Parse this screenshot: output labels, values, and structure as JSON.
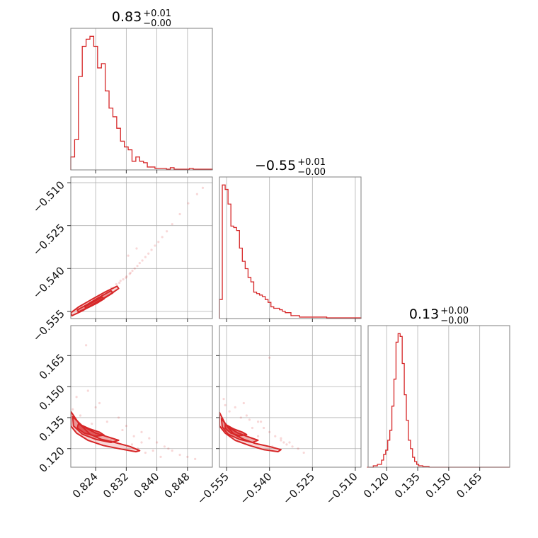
{
  "chart_data": {
    "type": "corner",
    "color": "#d62728",
    "parameters": [
      {
        "title_value": "0.83",
        "title_plus": "+0.01",
        "title_minus": "−0.00",
        "range": [
          0.8175,
          0.8545
        ],
        "ticks": [
          0.824,
          0.832,
          0.84,
          0.848
        ],
        "tick_labels": [
          "0.824",
          "0.832",
          "0.840",
          "0.848"
        ]
      },
      {
        "title_value": "−0.55",
        "title_plus": "+0.01",
        "title_minus": "−0.00",
        "range": [
          -0.5575,
          -0.508
        ],
        "ticks": [
          -0.555,
          -0.54,
          -0.525,
          -0.51
        ],
        "tick_labels": [
          "−0.555",
          "−0.540",
          "−0.525",
          "−0.510"
        ]
      },
      {
        "title_value": "0.13",
        "title_plus": "+0.00",
        "title_minus": "−0.00",
        "range": [
          0.111,
          0.1795
        ],
        "ticks": [
          0.12,
          0.135,
          0.15,
          0.165
        ],
        "tick_labels": [
          "0.120",
          "0.135",
          "0.150",
          "0.165"
        ]
      }
    ],
    "histograms": [
      {
        "edges": [
          0.8175,
          0.8185,
          0.8195,
          0.8205,
          0.8215,
          0.8225,
          0.8235,
          0.8245,
          0.8255,
          0.8265,
          0.8275,
          0.8285,
          0.8295,
          0.8305,
          0.8315,
          0.8325,
          0.8335,
          0.8345,
          0.8355,
          0.8365,
          0.8375,
          0.8385,
          0.8395,
          0.8405,
          0.8415,
          0.8425,
          0.8435,
          0.8445,
          0.8455,
          0.8465,
          0.8475,
          0.8485,
          0.8495,
          0.8505,
          0.8515,
          0.8525,
          0.8545
        ],
        "counts": [
          9,
          21,
          65,
          86,
          91,
          93,
          86,
          71,
          74,
          55,
          43,
          37,
          29,
          20,
          16,
          14,
          6,
          9,
          6,
          5,
          2,
          2,
          1,
          1,
          1,
          0.5,
          1.5,
          0.5,
          0.5,
          0.5,
          0.5,
          1,
          0.5,
          0.5,
          0.5,
          0.5
        ]
      },
      {
        "edges": [
          -0.5575,
          -0.5565,
          -0.5555,
          -0.5545,
          -0.5535,
          -0.5525,
          -0.5515,
          -0.5505,
          -0.5495,
          -0.5485,
          -0.5475,
          -0.5465,
          -0.5455,
          -0.5445,
          -0.5435,
          -0.5425,
          -0.5415,
          -0.5405,
          -0.5395,
          -0.5385,
          -0.5375,
          -0.5365,
          -0.5355,
          -0.5345,
          -0.5335,
          -0.5325,
          -0.5315,
          -0.5305,
          -0.5295,
          -0.528,
          -0.526,
          -0.524,
          -0.522,
          -0.52,
          -0.518,
          -0.516,
          -0.514,
          -0.512,
          -0.508
        ],
        "counts": [
          13,
          91,
          88,
          78,
          63,
          62,
          60,
          48,
          39,
          34,
          28,
          25,
          18,
          17,
          16,
          15,
          13,
          11,
          8,
          7,
          7,
          6,
          5,
          4,
          4,
          2,
          2,
          2,
          1,
          1,
          1,
          1,
          1,
          0.5,
          0.5,
          0.5,
          0.5,
          0.5
        ]
      },
      {
        "edges": [
          0.1105,
          0.1135,
          0.1155,
          0.1175,
          0.1185,
          0.1195,
          0.1205,
          0.1215,
          0.1225,
          0.1235,
          0.1245,
          0.1255,
          0.1265,
          0.1275,
          0.1285,
          0.1295,
          0.1305,
          0.1315,
          0.1325,
          0.1335,
          0.1345,
          0.1355,
          0.1375,
          0.1405,
          0.1795
        ],
        "counts": [
          0,
          1,
          2,
          5,
          9,
          12,
          19,
          26,
          43,
          62,
          88,
          94,
          92,
          73,
          51,
          33,
          19,
          13,
          7,
          4,
          2,
          1,
          0.5,
          0
        ]
      }
    ],
    "contours_2d": [
      {
        "pair": [
          0,
          1
        ],
        "levels": [
          [
            [
              0.8178,
              -0.5565
            ],
            [
              0.8205,
              -0.5548
            ],
            [
              0.824,
              -0.552
            ],
            [
              0.8275,
              -0.5493
            ],
            [
              0.83,
              -0.547
            ],
            [
              0.8296,
              -0.5462
            ],
            [
              0.8265,
              -0.5482
            ],
            [
              0.823,
              -0.5508
            ],
            [
              0.8195,
              -0.5535
            ],
            [
              0.8175,
              -0.5555
            ]
          ],
          [
            [
              0.8195,
              -0.5552
            ],
            [
              0.823,
              -0.553
            ],
            [
              0.8265,
              -0.5502
            ],
            [
              0.8285,
              -0.5485
            ],
            [
              0.828,
              -0.5478
            ],
            [
              0.825,
              -0.55
            ],
            [
              0.8215,
              -0.5528
            ],
            [
              0.8192,
              -0.5545
            ]
          ],
          [
            [
              0.8215,
              -0.554
            ],
            [
              0.8245,
              -0.552
            ],
            [
              0.8262,
              -0.5506
            ],
            [
              0.8257,
              -0.55
            ],
            [
              0.8235,
              -0.5516
            ],
            [
              0.8212,
              -0.5534
            ]
          ]
        ],
        "samples": [
          [
            0.8236,
            -0.5508
          ],
          [
            0.8244,
            -0.5505
          ],
          [
            0.8256,
            -0.5492
          ],
          [
            0.8268,
            -0.5483
          ],
          [
            0.8281,
            -0.5468
          ],
          [
            0.8294,
            -0.5455
          ],
          [
            0.8305,
            -0.5443
          ],
          [
            0.8312,
            -0.5438
          ],
          [
            0.8321,
            -0.5428
          ],
          [
            0.8329,
            -0.5419
          ],
          [
            0.8336,
            -0.5408
          ],
          [
            0.8342,
            -0.54
          ],
          [
            0.8349,
            -0.5391
          ],
          [
            0.8355,
            -0.5381
          ],
          [
            0.8362,
            -0.5372
          ],
          [
            0.837,
            -0.536
          ],
          [
            0.8378,
            -0.5348
          ],
          [
            0.8386,
            -0.5335
          ],
          [
            0.8395,
            -0.532
          ],
          [
            0.8404,
            -0.5307
          ],
          [
            0.8414,
            -0.529
          ],
          [
            0.8426,
            -0.527
          ],
          [
            0.844,
            -0.5245
          ],
          [
            0.846,
            -0.521
          ],
          [
            0.8482,
            -0.5172
          ],
          [
            0.8505,
            -0.514
          ],
          [
            0.852,
            -0.5118
          ],
          [
            0.8325,
            -0.5355
          ],
          [
            0.8347,
            -0.533
          ],
          [
            0.8331,
            -0.5415
          ],
          [
            0.8319,
            -0.5432
          ],
          [
            0.8302,
            -0.545
          ]
        ]
      },
      {
        "pair": [
          0,
          2
        ],
        "levels": [
          [
            [
              0.8175,
              0.138
            ],
            [
              0.8195,
              0.1325
            ],
            [
              0.8225,
              0.127
            ],
            [
              0.8255,
              0.1245
            ],
            [
              0.829,
              0.123
            ],
            [
              0.833,
              0.121
            ],
            [
              0.8355,
              0.119
            ],
            [
              0.8345,
              0.1185
            ],
            [
              0.83,
              0.12
            ],
            [
              0.826,
              0.1215
            ],
            [
              0.822,
              0.124
            ],
            [
              0.819,
              0.1275
            ],
            [
              0.8175,
              0.131
            ]
          ],
          [
            [
              0.818,
              0.1355
            ],
            [
              0.8205,
              0.131
            ],
            [
              0.824,
              0.1275
            ],
            [
              0.8275,
              0.1255
            ],
            [
              0.83,
              0.124
            ],
            [
              0.828,
              0.123
            ],
            [
              0.824,
              0.1245
            ],
            [
              0.8205,
              0.127
            ],
            [
              0.8182,
              0.131
            ]
          ],
          [
            [
              0.8195,
              0.132
            ],
            [
              0.8225,
              0.1295
            ],
            [
              0.825,
              0.128
            ],
            [
              0.8262,
              0.1265
            ],
            [
              0.824,
              0.126
            ],
            [
              0.821,
              0.1275
            ],
            [
              0.8192,
              0.13
            ]
          ]
        ],
        "samples": [
          [
            0.819,
            0.145
          ],
          [
            0.824,
            0.14
          ],
          [
            0.83,
            0.135
          ],
          [
            0.825,
            0.142
          ],
          [
            0.832,
            0.131
          ],
          [
            0.836,
            0.128
          ],
          [
            0.838,
            0.125
          ],
          [
            0.84,
            0.123
          ],
          [
            0.842,
            0.121
          ],
          [
            0.844,
            0.119
          ],
          [
            0.846,
            0.117
          ],
          [
            0.848,
            0.116
          ],
          [
            0.85,
            0.115
          ],
          [
            0.835,
            0.12
          ],
          [
            0.837,
            0.118
          ],
          [
            0.839,
            0.119
          ],
          [
            0.841,
            0.116
          ],
          [
            0.834,
            0.126
          ],
          [
            0.831,
            0.129
          ],
          [
            0.827,
            0.133
          ],
          [
            0.818,
            0.139
          ],
          [
            0.82,
            0.136
          ],
          [
            0.823,
            0.132
          ],
          [
            0.8215,
            0.17
          ],
          [
            0.822,
            0.148
          ],
          [
            0.8335,
            0.122
          ],
          [
            0.828,
            0.124
          ],
          [
            0.836,
            0.123
          ],
          [
            0.843,
            0.12
          ]
        ]
      },
      {
        "pair": [
          1,
          2
        ],
        "levels": [
          [
            [
              -0.5575,
              0.1375
            ],
            [
              -0.5555,
              0.132
            ],
            [
              -0.5525,
              0.127
            ],
            [
              -0.549,
              0.1245
            ],
            [
              -0.545,
              0.1225
            ],
            [
              -0.54,
              0.121
            ],
            [
              -0.536,
              0.1195
            ],
            [
              -0.537,
              0.1185
            ],
            [
              -0.542,
              0.1195
            ],
            [
              -0.547,
              0.1215
            ],
            [
              -0.552,
              0.124
            ],
            [
              -0.5555,
              0.1275
            ],
            [
              -0.5575,
              0.131
            ]
          ],
          [
            [
              -0.5568,
              0.1345
            ],
            [
              -0.5545,
              0.1305
            ],
            [
              -0.551,
              0.1275
            ],
            [
              -0.547,
              0.1255
            ],
            [
              -0.544,
              0.124
            ],
            [
              -0.546,
              0.123
            ],
            [
              -0.5505,
              0.1245
            ],
            [
              -0.5545,
              0.127
            ],
            [
              -0.5565,
              0.1305
            ]
          ],
          [
            [
              -0.5555,
              0.1318
            ],
            [
              -0.5525,
              0.1295
            ],
            [
              -0.5495,
              0.128
            ],
            [
              -0.548,
              0.1268
            ],
            [
              -0.5505,
              0.1262
            ],
            [
              -0.5535,
              0.1275
            ],
            [
              -0.5555,
              0.1298
            ]
          ]
        ],
        "samples": [
          [
            -0.556,
            0.144
          ],
          [
            -0.552,
            0.14
          ],
          [
            -0.548,
            0.136
          ],
          [
            -0.544,
            0.133
          ],
          [
            -0.542,
            0.13
          ],
          [
            -0.54,
            0.128
          ],
          [
            -0.538,
            0.126
          ],
          [
            -0.536,
            0.124
          ],
          [
            -0.534,
            0.122
          ],
          [
            -0.532,
            0.121
          ],
          [
            -0.53,
            0.12
          ],
          [
            -0.528,
            0.118
          ],
          [
            -0.544,
            0.126
          ],
          [
            -0.546,
            0.13
          ],
          [
            -0.55,
            0.135
          ],
          [
            -0.554,
            0.138
          ],
          [
            -0.5555,
            0.141
          ],
          [
            -0.549,
            0.142
          ],
          [
            -0.54,
            0.164
          ],
          [
            -0.543,
            0.133
          ],
          [
            -0.547,
            0.134
          ],
          [
            -0.535,
            0.123
          ],
          [
            -0.536,
            0.125
          ],
          [
            -0.533,
            0.123
          ],
          [
            -0.539,
            0.121
          ]
        ]
      }
    ]
  }
}
